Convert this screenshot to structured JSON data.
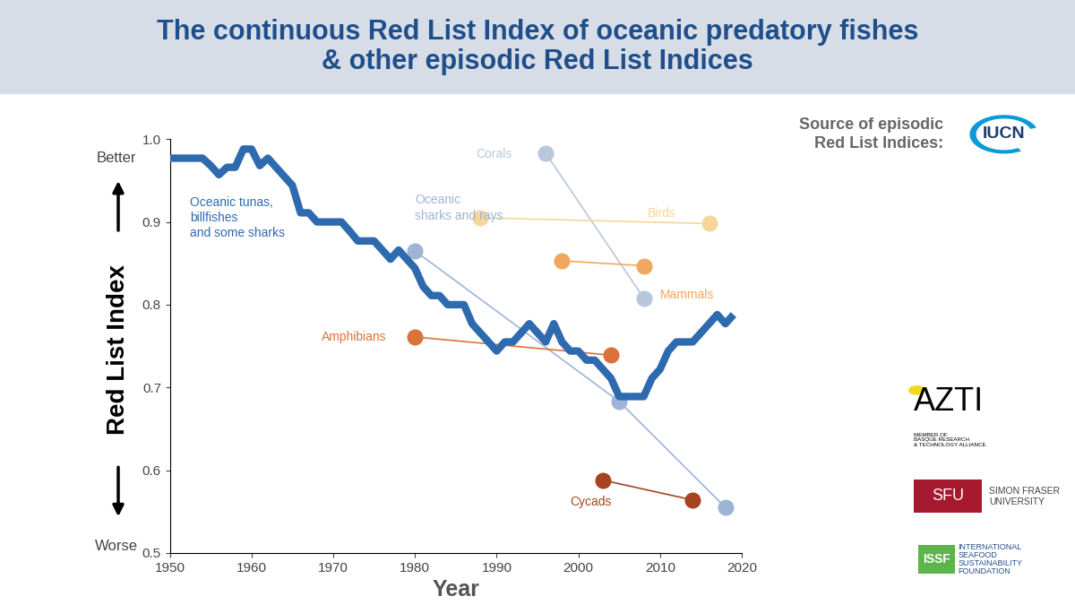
{
  "chart_data": {
    "type": "line",
    "title": "The continuous Red List Index of oceanic predatory fishes\n& other episodic Red List Indices",
    "xlabel": "Year",
    "ylabel": "Red List Index",
    "better_label": "Better",
    "worse_label": "Worse",
    "source_note": "Source of episodic\nRed List Indices:",
    "logos": {
      "iucn": "IUCN",
      "azti": "AZTI",
      "azti_note": "MEMBER OF\nBASQUE RESEARCH\n& TECHNOLOGY ALLIANCE",
      "sfu": "SFU",
      "sfu_name": "SIMON FRASER\nUNIVERSITY",
      "issf": "ISSF",
      "issf_name": "INTERNATIONAL\nSEAFOOD\nSUSTAINABILITY\nFOUNDATION"
    },
    "xlim": [
      1950,
      2020
    ],
    "xticks": [
      1950,
      1960,
      1970,
      1980,
      1990,
      2000,
      2010,
      2020
    ],
    "ylim": [
      0.5,
      1
    ],
    "yticks": [
      0.5,
      0.6,
      0.7,
      0.8,
      0.9,
      {
        "value": 1,
        "label": "1.0"
      }
    ],
    "grid": false,
    "series": [
      {
        "name": "Oceanic tunas,\nbillfishes\nand some sharks",
        "color": "#2e6aae",
        "line_style": "solid",
        "x": [
          1950,
          1951,
          1952,
          1953,
          1954,
          1955,
          1956,
          1957,
          1958,
          1959,
          1960,
          1961,
          1962,
          1963,
          1964,
          1965,
          1966,
          1967,
          1968,
          1969,
          1970,
          1971,
          1972,
          1973,
          1974,
          1975,
          1976,
          1977,
          1978,
          1979,
          1980,
          1981,
          1982,
          1983,
          1984,
          1985,
          1986,
          1987,
          1988,
          1989,
          1990,
          1991,
          1992,
          1993,
          1994,
          1995,
          1996,
          1997,
          1998,
          1999,
          2000,
          2001,
          2002,
          2003,
          2004,
          2005,
          2006,
          2007,
          2008,
          2009,
          2010,
          2011,
          2012,
          2013,
          2014,
          2015,
          2016,
          2017,
          2018,
          2019
        ],
        "values": [
          0.977,
          0.977,
          0.977,
          0.977,
          0.977,
          0.968,
          0.957,
          0.966,
          0.966,
          0.988,
          0.988,
          0.968,
          0.977,
          0.966,
          0.955,
          0.944,
          0.911,
          0.911,
          0.9,
          0.9,
          0.9,
          0.9,
          0.889,
          0.877,
          0.877,
          0.877,
          0.866,
          0.855,
          0.866,
          0.855,
          0.844,
          0.822,
          0.811,
          0.811,
          0.8,
          0.8,
          0.8,
          0.777,
          0.766,
          0.755,
          0.744,
          0.755,
          0.755,
          0.766,
          0.777,
          0.766,
          0.755,
          0.777,
          0.755,
          0.744,
          0.744,
          0.733,
          0.733,
          0.722,
          0.711,
          0.689,
          0.689,
          0.689,
          0.689,
          0.711,
          0.722,
          0.744,
          0.755,
          0.755,
          0.755,
          0.766,
          0.777,
          0.788,
          0.777,
          0.788
        ]
      },
      {
        "name": "Oceanic\nsharks and rays",
        "color": "#9db4d6",
        "marker": "o",
        "x": [
          1980,
          2005,
          2018
        ],
        "values": [
          0.865,
          0.683,
          0.555
        ]
      },
      {
        "name": "Corals",
        "color": "#b8c7dc",
        "marker": "o",
        "x": [
          1996,
          2008
        ],
        "values": [
          0.983,
          0.808
        ]
      },
      {
        "name": "Birds",
        "color": "#f7d69a",
        "marker": "o",
        "x": [
          1988,
          2016
        ],
        "values": [
          0.905,
          0.898
        ]
      },
      {
        "name": "Mammals",
        "color": "#f0a860",
        "marker": "o",
        "x": [
          1998,
          2008
        ],
        "values": [
          0.853,
          0.847
        ]
      },
      {
        "name": "Amphibians",
        "color": "#d9733a",
        "marker": "o",
        "x": [
          1980,
          2004
        ],
        "values": [
          0.761,
          0.739
        ]
      },
      {
        "name": "Cycads",
        "color": "#a8431f",
        "marker": "o",
        "x": [
          2003,
          2014
        ],
        "values": [
          0.588,
          0.564
        ]
      }
    ]
  }
}
